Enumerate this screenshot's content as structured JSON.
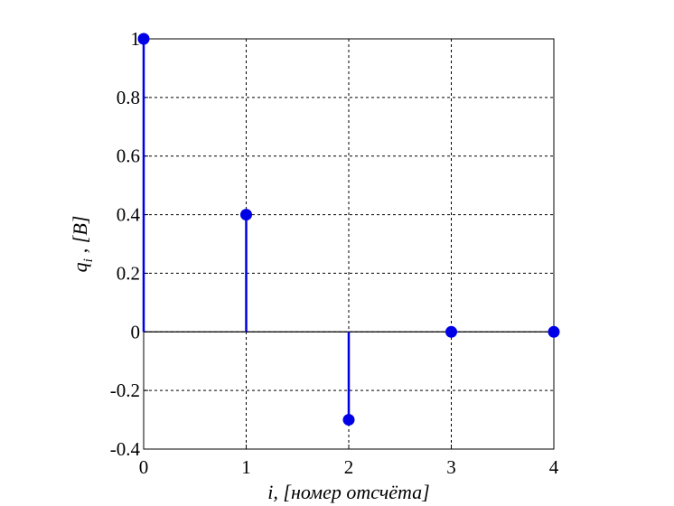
{
  "chart_data": {
    "type": "stem",
    "x": [
      0,
      1,
      2,
      3,
      4
    ],
    "values": [
      1,
      0.4,
      -0.3,
      0,
      0
    ],
    "color": "#0000e6",
    "xlim": [
      0,
      4
    ],
    "xticks": [
      0,
      1,
      2,
      3,
      4
    ],
    "ylim": [
      -0.4,
      1
    ],
    "yticks": [
      -0.4,
      -0.2,
      0,
      0.2,
      0.4,
      0.6,
      0.8,
      1
    ],
    "grid": true,
    "xlabel": "i, [номер отсчёта]",
    "ylabel": "q",
    "ylabel_sub": "i",
    "ylabel_suffix": ", [В]"
  }
}
